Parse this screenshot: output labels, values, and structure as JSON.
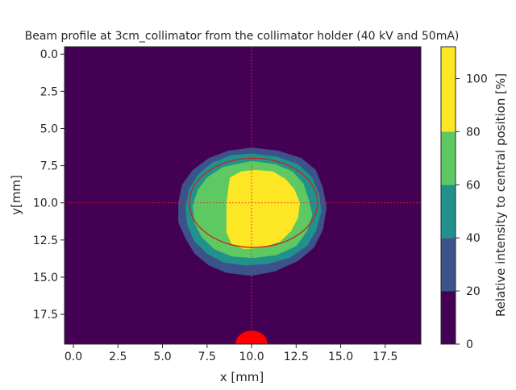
{
  "chart_data": {
    "type": "heatmap",
    "title": "Beam profile at 3cm_collimator from the collimator holder (40 kV and 50mA)",
    "xlabel": "x [mm]",
    "ylabel": "y[mm]",
    "xlim": [
      -0.5,
      19.5
    ],
    "ylim": [
      19.5,
      -0.5
    ],
    "y_inverted": true,
    "x_ticks": [
      "0.0",
      "2.5",
      "5.0",
      "7.5",
      "10.0",
      "12.5",
      "15.0",
      "17.5"
    ],
    "x_tick_values": [
      0,
      2.5,
      5,
      7.5,
      10,
      12.5,
      15,
      17.5
    ],
    "y_ticks": [
      "0.0",
      "2.5",
      "5.0",
      "7.5",
      "10.0",
      "12.5",
      "15.0",
      "17.5"
    ],
    "y_tick_values": [
      0,
      2.5,
      5,
      7.5,
      10,
      12.5,
      15,
      17.5
    ],
    "colorbar": {
      "label": "Relative intensity to central position [%]",
      "ticks": [
        "0",
        "20",
        "40",
        "60",
        "80",
        "100"
      ],
      "tick_values": [
        0,
        20,
        40,
        60,
        80,
        100
      ],
      "range": [
        0,
        112
      ],
      "levels": [
        {
          "min": 0,
          "max": 20,
          "color": "#440154"
        },
        {
          "min": 20,
          "max": 40,
          "color": "#3b528b"
        },
        {
          "min": 40,
          "max": 60,
          "color": "#21918c"
        },
        {
          "min": 60,
          "max": 80,
          "color": "#5ec962"
        },
        {
          "min": 80,
          "max": 112,
          "color": "#fde725"
        }
      ]
    },
    "contours": [
      {
        "level": "20-40",
        "color": "#3b528b",
        "polygon": [
          [
            10,
            6.3
          ],
          [
            11.5,
            6.5
          ],
          [
            12.8,
            7.0
          ],
          [
            13.6,
            7.8
          ],
          [
            14.0,
            9.0
          ],
          [
            14.2,
            10.3
          ],
          [
            14.0,
            11.8
          ],
          [
            13.5,
            13.0
          ],
          [
            12.6,
            13.9
          ],
          [
            11.3,
            14.6
          ],
          [
            10.0,
            14.9
          ],
          [
            8.6,
            14.7
          ],
          [
            7.6,
            14.2
          ],
          [
            6.8,
            13.4
          ],
          [
            6.3,
            12.4
          ],
          [
            5.9,
            11.3
          ],
          [
            5.9,
            10.0
          ],
          [
            6.1,
            8.8
          ],
          [
            6.7,
            7.8
          ],
          [
            7.6,
            7.0
          ],
          [
            8.7,
            6.5
          ]
        ]
      },
      {
        "level": "40-60",
        "color": "#21918c",
        "polygon": [
          [
            10,
            6.7
          ],
          [
            11.4,
            6.9
          ],
          [
            12.6,
            7.4
          ],
          [
            13.4,
            8.3
          ],
          [
            13.8,
            9.5
          ],
          [
            13.9,
            10.6
          ],
          [
            13.6,
            11.9
          ],
          [
            13.1,
            12.9
          ],
          [
            12.1,
            13.7
          ],
          [
            10.9,
            14.1
          ],
          [
            9.6,
            14.2
          ],
          [
            8.4,
            14.0
          ],
          [
            7.5,
            13.4
          ],
          [
            6.8,
            12.6
          ],
          [
            6.4,
            11.5
          ],
          [
            6.3,
            10.3
          ],
          [
            6.5,
            9.1
          ],
          [
            7.0,
            8.1
          ],
          [
            7.8,
            7.3
          ],
          [
            8.9,
            6.8
          ]
        ]
      },
      {
        "level": "60-80",
        "color": "#5ec962",
        "polygon": [
          [
            10,
            7.2
          ],
          [
            11.3,
            7.4
          ],
          [
            12.3,
            7.9
          ],
          [
            12.9,
            8.7
          ],
          [
            13.2,
            9.8
          ],
          [
            13.4,
            10.8
          ],
          [
            13.1,
            11.9
          ],
          [
            12.5,
            12.9
          ],
          [
            11.4,
            13.5
          ],
          [
            10.1,
            13.7
          ],
          [
            8.9,
            13.6
          ],
          [
            7.9,
            13.1
          ],
          [
            7.2,
            12.3
          ],
          [
            6.8,
            11.3
          ],
          [
            6.7,
            10.2
          ],
          [
            7.0,
            9.1
          ],
          [
            7.5,
            8.3
          ],
          [
            8.4,
            7.6
          ]
        ]
      },
      {
        "level": "80-112",
        "color": "#fde725",
        "polygon": [
          [
            10.2,
            7.8
          ],
          [
            11.2,
            7.9
          ],
          [
            11.9,
            8.4
          ],
          [
            12.4,
            9.1
          ],
          [
            12.7,
            10.0
          ],
          [
            12.6,
            11.0
          ],
          [
            12.2,
            11.9
          ],
          [
            11.6,
            12.6
          ],
          [
            10.6,
            13.0
          ],
          [
            9.6,
            13.1
          ],
          [
            8.9,
            12.8
          ],
          [
            8.6,
            12.0
          ],
          [
            8.6,
            11.0
          ],
          [
            8.6,
            10.0
          ],
          [
            8.7,
            9.1
          ],
          [
            8.8,
            8.3
          ],
          [
            9.4,
            7.9
          ]
        ]
      }
    ],
    "overlays": {
      "crosshair": {
        "x": 10,
        "y": 10,
        "color": "#e8262a"
      },
      "fit_ellipse": {
        "cx": 10.1,
        "cy": 10.0,
        "rx": 3.6,
        "ry": 3.0,
        "color": "#d11f1f"
      },
      "marker": {
        "x": 10,
        "y": 19.5,
        "r": 0.9,
        "color": "#ff0000"
      }
    }
  }
}
